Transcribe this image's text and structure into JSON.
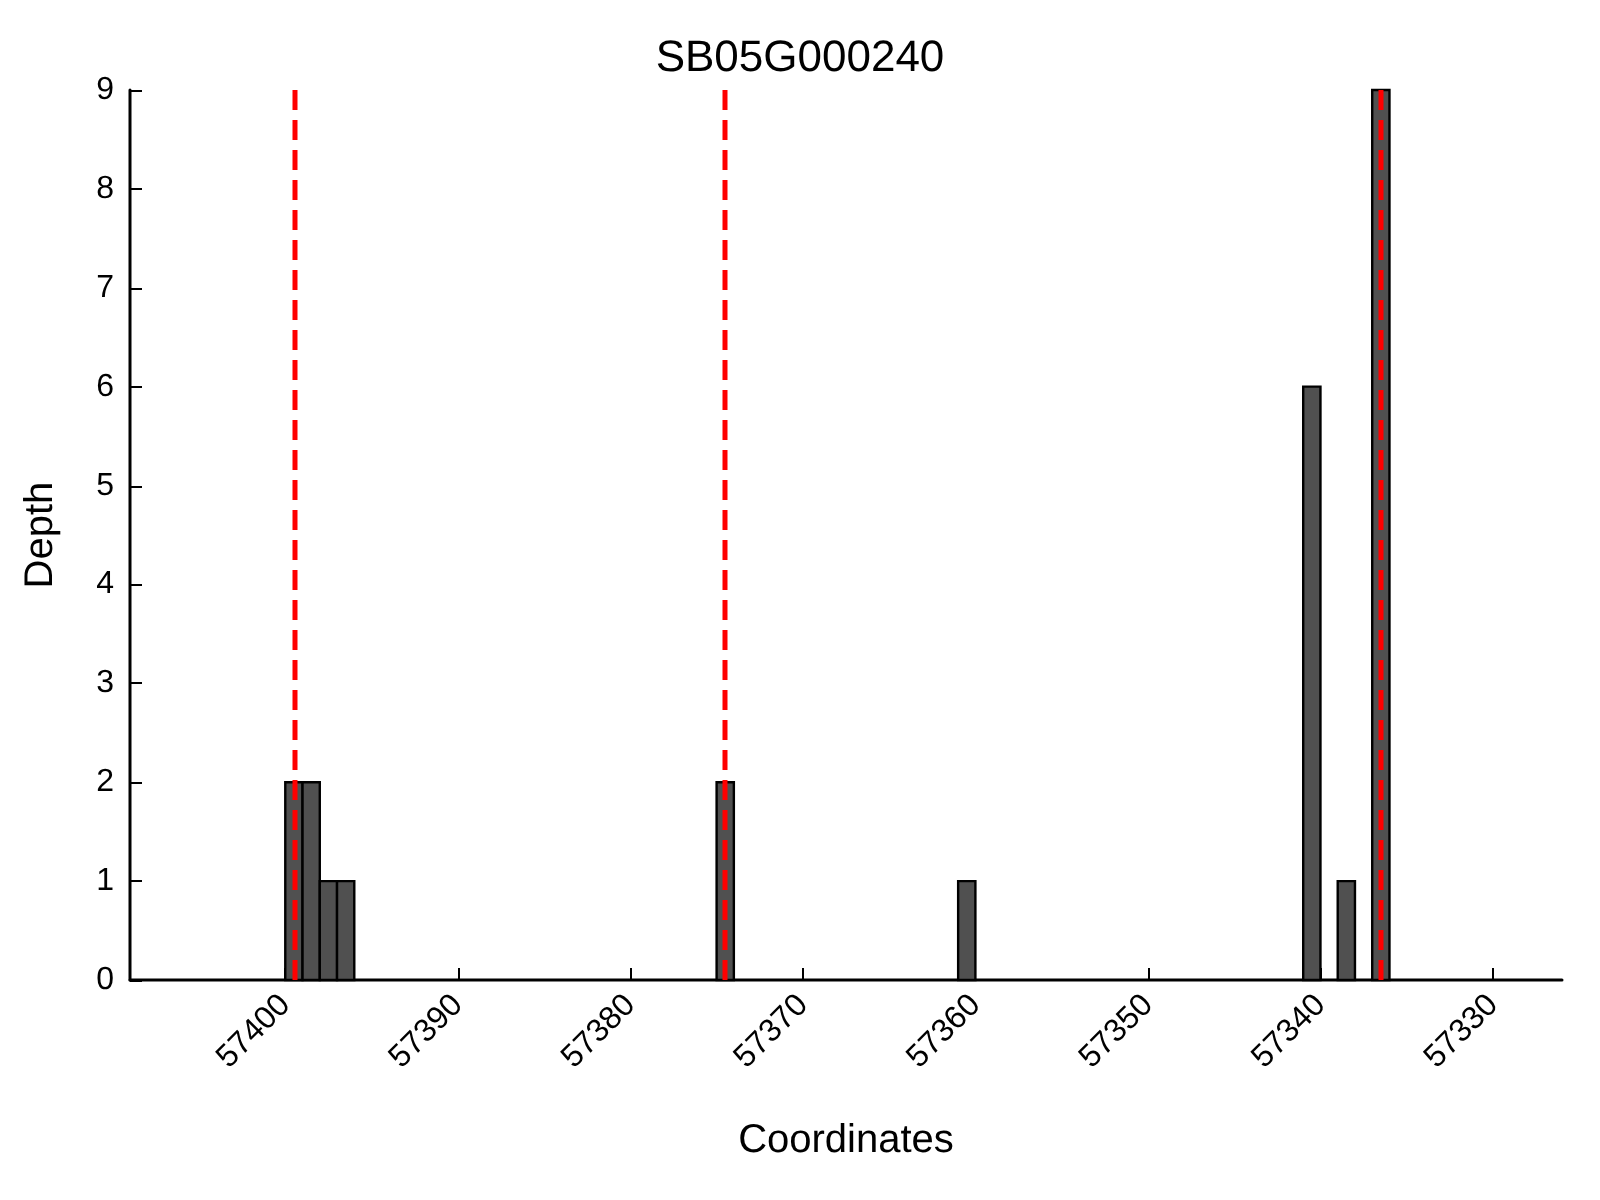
{
  "chart_data": {
    "type": "bar",
    "title": "SB05G000240",
    "xlabel": "Coordinates",
    "ylabel": "Depth",
    "x": [
      57399.5,
      57398.5,
      57397.5,
      57396.5,
      57374.5,
      57360.5,
      57340.5,
      57338.5,
      57336.5
    ],
    "values": [
      2,
      2,
      1,
      1,
      2,
      1,
      6,
      1,
      9
    ],
    "color": "#505050",
    "xlim": [
      57409,
      57326
    ],
    "xticks": [
      57400,
      57390,
      57380,
      57370,
      57360,
      57350,
      57340,
      57330
    ],
    "ylim": [
      0,
      9
    ],
    "yticks": [
      0,
      1,
      2,
      3,
      4,
      5,
      6,
      7,
      8,
      9
    ],
    "ref_lines": [
      {
        "axis": "x",
        "value": 57399.5,
        "color": "#ff0000",
        "line_style": "dashed"
      },
      {
        "axis": "x",
        "value": 57374.5,
        "color": "#ff0000",
        "line_style": "dashed"
      },
      {
        "axis": "x",
        "value": 57336.5,
        "color": "#ff0000",
        "line_style": "dashed"
      }
    ],
    "grid": false
  }
}
